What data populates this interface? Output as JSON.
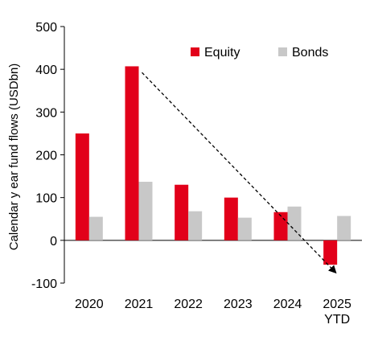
{
  "chart_data": {
    "type": "bar",
    "categories": [
      [
        "2020"
      ],
      [
        "2021"
      ],
      [
        "2022"
      ],
      [
        "2023"
      ],
      [
        "2024"
      ],
      [
        "2025",
        "YTD"
      ]
    ],
    "series": [
      {
        "name": "Equity",
        "color": "#e2001a",
        "values": [
          250,
          407,
          130,
          100,
          66,
          -57
        ]
      },
      {
        "name": "Bonds",
        "color": "#c8c8c8",
        "values": [
          55,
          137,
          68,
          53,
          79,
          57
        ]
      }
    ],
    "title": "",
    "xlabel": "",
    "ylabel": "Calendar y ear fund flows (USDbn)",
    "ylim": [
      -100,
      500
    ],
    "yticks": [
      -100,
      0,
      100,
      200,
      300,
      400,
      500
    ],
    "grid": false,
    "legend_position": "top-right",
    "annotations": [
      {
        "type": "dashed-arrow",
        "from": {
          "category": "2021",
          "value": 400
        },
        "to": {
          "category": "2025 YTD",
          "value": -75
        }
      }
    ]
  }
}
